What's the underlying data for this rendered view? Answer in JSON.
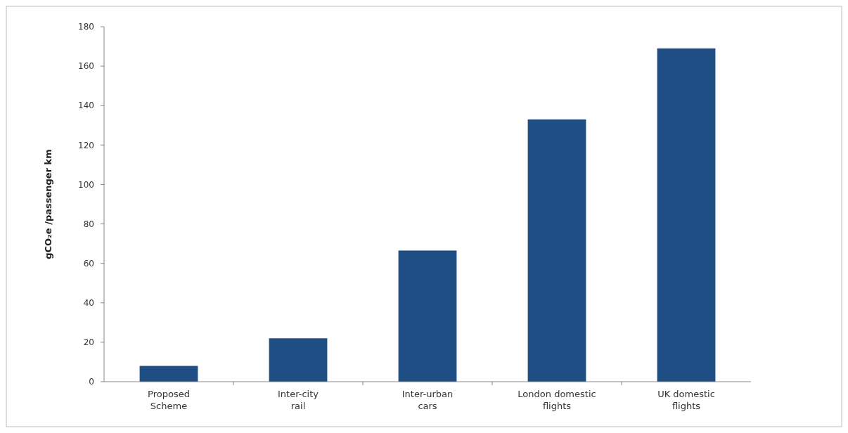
{
  "chart_data": {
    "type": "bar",
    "ylabel": "gCO₂e /passenger km",
    "categories": [
      "Proposed\nScheme",
      "Inter-city\nrail",
      "Inter-urban\ncars",
      "London domestic\nflights",
      "UK domestic\nflights"
    ],
    "values": [
      8,
      22,
      66.5,
      133,
      169
    ],
    "color": "#1f4e84",
    "ylim": [
      0,
      180
    ],
    "yticks": [
      0,
      20,
      40,
      60,
      80,
      100,
      120,
      140,
      160,
      180
    ],
    "grid": false
  }
}
